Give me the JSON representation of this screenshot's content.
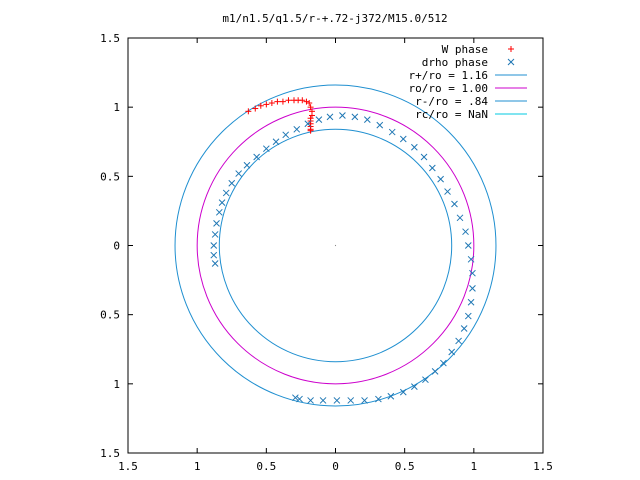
{
  "chart_data": {
    "type": "scatter",
    "title": "m1/n1.5/q1.5/r-+.72-j372/M15.0/512",
    "xlabel": "",
    "ylabel": "",
    "xlim": [
      -1.5,
      1.5
    ],
    "ylim": [
      -1.5,
      1.5
    ],
    "x_ticks": [
      {
        "value": -1.5,
        "label": "1.5"
      },
      {
        "value": -1.0,
        "label": "1"
      },
      {
        "value": -0.5,
        "label": "0.5"
      },
      {
        "value": 0,
        "label": "0"
      },
      {
        "value": 0.5,
        "label": "0.5"
      },
      {
        "value": 1.0,
        "label": "1"
      },
      {
        "value": 1.5,
        "label": "1.5"
      }
    ],
    "y_ticks": [
      {
        "value": 1.5,
        "label": "1.5"
      },
      {
        "value": 1.0,
        "label": "1"
      },
      {
        "value": 0.5,
        "label": "0.5"
      },
      {
        "value": 0,
        "label": "0"
      },
      {
        "value": -0.5,
        "label": "0.5"
      },
      {
        "value": -1.0,
        "label": "1"
      },
      {
        "value": -1.5,
        "label": "1.5"
      }
    ],
    "grid": false,
    "legend_position": "top-right",
    "series": [
      {
        "name": "W phase",
        "kind": "points",
        "marker": "+",
        "color": "#ff0000",
        "x": [
          -0.63,
          -0.58,
          -0.54,
          -0.5,
          -0.46,
          -0.42,
          -0.38,
          -0.34,
          -0.3,
          -0.27,
          -0.24,
          -0.21,
          -0.19,
          -0.18,
          -0.17,
          -0.17,
          -0.18,
          -0.18,
          -0.18,
          -0.18,
          -0.18,
          -0.18
        ],
        "y": [
          0.97,
          0.99,
          1.01,
          1.02,
          1.03,
          1.04,
          1.04,
          1.05,
          1.05,
          1.05,
          1.05,
          1.04,
          1.03,
          1.0,
          0.97,
          0.94,
          0.92,
          0.9,
          0.88,
          0.86,
          0.84,
          0.83
        ]
      },
      {
        "name": "drho phase",
        "kind": "points",
        "marker": "x",
        "color": "#1f77b4",
        "x": [
          -0.87,
          -0.88,
          -0.88,
          -0.87,
          -0.86,
          -0.84,
          -0.82,
          -0.79,
          -0.75,
          -0.7,
          -0.64,
          -0.57,
          -0.5,
          -0.43,
          -0.36,
          -0.28,
          -0.2,
          -0.12,
          -0.04,
          0.05,
          0.14,
          0.23,
          0.32,
          0.41,
          0.49,
          0.57,
          0.64,
          0.7,
          0.76,
          0.81,
          0.86,
          0.9,
          0.94,
          0.96,
          0.98,
          0.99,
          0.99,
          0.98,
          0.96,
          0.93,
          0.89,
          0.84,
          0.78,
          0.72,
          0.65,
          0.57,
          0.49,
          0.4,
          0.31,
          0.21,
          0.11,
          0.01,
          -0.09,
          -0.18,
          -0.26,
          -0.29
        ],
        "y": [
          -0.13,
          -0.07,
          0.0,
          0.08,
          0.16,
          0.24,
          0.31,
          0.38,
          0.45,
          0.52,
          0.58,
          0.64,
          0.7,
          0.75,
          0.8,
          0.84,
          0.88,
          0.91,
          0.93,
          0.94,
          0.93,
          0.91,
          0.87,
          0.82,
          0.77,
          0.71,
          0.64,
          0.56,
          0.48,
          0.39,
          0.3,
          0.2,
          0.1,
          0.0,
          -0.1,
          -0.2,
          -0.31,
          -0.41,
          -0.51,
          -0.6,
          -0.69,
          -0.77,
          -0.85,
          -0.91,
          -0.97,
          -1.02,
          -1.06,
          -1.09,
          -1.11,
          -1.12,
          -1.12,
          -1.12,
          -1.12,
          -1.12,
          -1.11,
          -1.1
        ]
      },
      {
        "name": "r+/ro = 1.16",
        "kind": "circle",
        "radius": 1.16,
        "color": "#1f8fd0"
      },
      {
        "name": "ro/ro = 1.00",
        "kind": "circle",
        "radius": 1.0,
        "color": "#cc00cc"
      },
      {
        "name": "r-/ro = .84",
        "kind": "circle",
        "radius": 0.84,
        "color": "#1f8fd0"
      },
      {
        "name": "rc/ro = NaN",
        "kind": "circle",
        "radius": null,
        "color": "#00c8e0"
      }
    ]
  }
}
